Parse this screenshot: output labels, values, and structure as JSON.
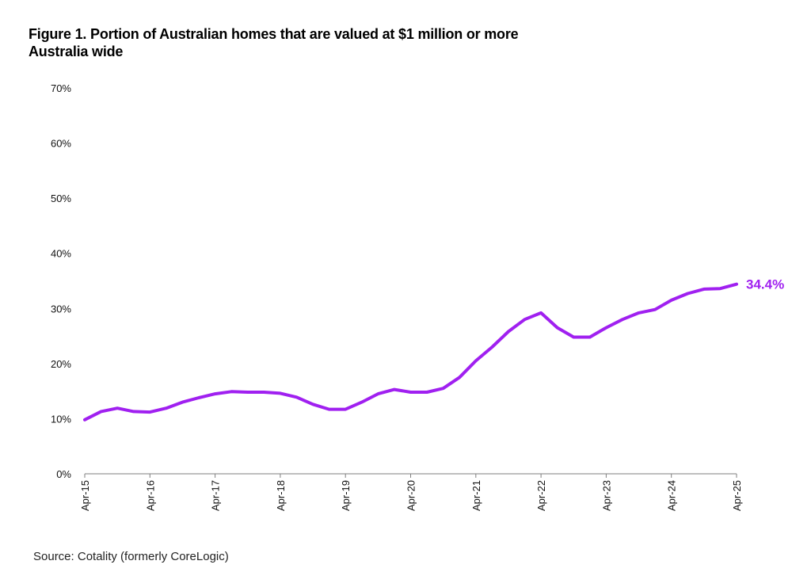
{
  "title_line1": "Figure 1. Portion of Australian homes that are valued at $1 million or more",
  "title_line2": "Australia wide",
  "source": "Source: Cotality (formerly CoreLogic)",
  "colors": {
    "series": "#a020f0",
    "axis": "#7f7f7f"
  },
  "chart_data": {
    "type": "line",
    "title": "Figure 1. Portion of Australian homes that are valued at $1 million or more",
    "subtitle": "Australia wide",
    "xlabel": "",
    "ylabel": "",
    "ylim": [
      0,
      70
    ],
    "y_ticks": [
      "0%",
      "10%",
      "20%",
      "30%",
      "40%",
      "50%",
      "60%",
      "70%"
    ],
    "x_ticks": [
      "Apr-15",
      "Apr-16",
      "Apr-17",
      "Apr-18",
      "Apr-19",
      "Apr-20",
      "Apr-21",
      "Apr-22",
      "Apr-23",
      "Apr-24",
      "Apr-25"
    ],
    "grid": false,
    "end_label": "34.4%",
    "series": [
      {
        "x": [
          "Apr-15",
          "Jul-15",
          "Oct-15",
          "Jan-16",
          "Apr-16",
          "Jul-16",
          "Oct-16",
          "Jan-17",
          "Apr-17",
          "Jul-17",
          "Oct-17",
          "Jan-18",
          "Apr-18",
          "Jul-18",
          "Oct-18",
          "Jan-19",
          "Apr-19",
          "Jul-19",
          "Oct-19",
          "Jan-20",
          "Apr-20",
          "Jul-20",
          "Oct-20",
          "Jan-21",
          "Apr-21",
          "Jul-21",
          "Oct-21",
          "Jan-22",
          "Apr-22",
          "Jul-22",
          "Oct-22",
          "Jan-23",
          "Apr-23",
          "Jul-23",
          "Oct-23",
          "Jan-24",
          "Apr-24",
          "Jul-24",
          "Oct-24",
          "Jan-25",
          "Apr-25"
        ],
        "values": [
          9.8,
          11.3,
          11.9,
          11.3,
          11.2,
          11.9,
          13.0,
          13.8,
          14.5,
          14.9,
          14.8,
          14.8,
          14.6,
          13.9,
          12.6,
          11.7,
          11.7,
          13.0,
          14.5,
          15.3,
          14.8,
          14.8,
          15.5,
          17.5,
          20.5,
          23.0,
          25.8,
          28.0,
          29.2,
          26.5,
          24.8,
          24.8,
          26.5,
          28.0,
          29.2,
          29.8,
          31.5,
          32.7,
          33.5,
          33.6,
          34.4
        ]
      }
    ]
  }
}
